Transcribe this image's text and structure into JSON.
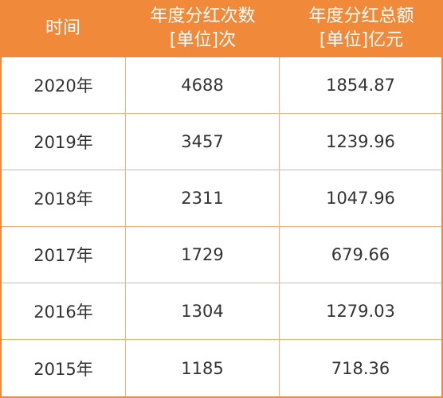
{
  "chart_data": {
    "type": "table",
    "headers": [
      {
        "line1": "时间",
        "line2": ""
      },
      {
        "line1": "年度分红次数",
        "line2": "[单位]次"
      },
      {
        "line1": "年度分红总额",
        "line2": "[单位]亿元"
      }
    ],
    "rows": [
      {
        "year": "2020年",
        "count": "4688",
        "amount": "1854.87"
      },
      {
        "year": "2019年",
        "count": "3457",
        "amount": "1239.96"
      },
      {
        "year": "2018年",
        "count": "2311",
        "amount": "1047.96"
      },
      {
        "year": "2017年",
        "count": "1729",
        "amount": "679.66"
      },
      {
        "year": "2016年",
        "count": "1304",
        "amount": "1279.03"
      },
      {
        "year": "2015年",
        "count": "1185",
        "amount": "718.36"
      }
    ]
  },
  "colors": {
    "header_bg": "#f08a3a",
    "border": "#f3b07c",
    "text": "#333333"
  }
}
